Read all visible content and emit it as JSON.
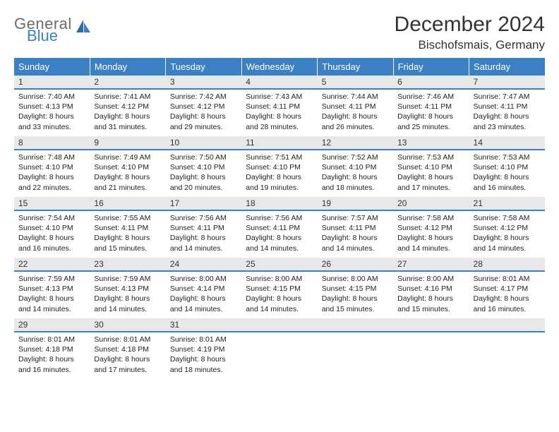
{
  "logo": {
    "word1": "General",
    "word2": "Blue",
    "color_gray": "#6b6b6b",
    "color_blue": "#3a80c2"
  },
  "title": "December 2024",
  "location": "Bischofsmais, Germany",
  "header_bg": "#3a80c2",
  "daynum_bg": "#e8e8e8",
  "daynum_border": "#3a80c2",
  "day_headers": [
    "Sunday",
    "Monday",
    "Tuesday",
    "Wednesday",
    "Thursday",
    "Friday",
    "Saturday"
  ],
  "weeks": [
    [
      {
        "n": "1",
        "sr": "Sunrise: 7:40 AM",
        "ss": "Sunset: 4:13 PM",
        "d1": "Daylight: 8 hours",
        "d2": "and 33 minutes."
      },
      {
        "n": "2",
        "sr": "Sunrise: 7:41 AM",
        "ss": "Sunset: 4:12 PM",
        "d1": "Daylight: 8 hours",
        "d2": "and 31 minutes."
      },
      {
        "n": "3",
        "sr": "Sunrise: 7:42 AM",
        "ss": "Sunset: 4:12 PM",
        "d1": "Daylight: 8 hours",
        "d2": "and 29 minutes."
      },
      {
        "n": "4",
        "sr": "Sunrise: 7:43 AM",
        "ss": "Sunset: 4:11 PM",
        "d1": "Daylight: 8 hours",
        "d2": "and 28 minutes."
      },
      {
        "n": "5",
        "sr": "Sunrise: 7:44 AM",
        "ss": "Sunset: 4:11 PM",
        "d1": "Daylight: 8 hours",
        "d2": "and 26 minutes."
      },
      {
        "n": "6",
        "sr": "Sunrise: 7:46 AM",
        "ss": "Sunset: 4:11 PM",
        "d1": "Daylight: 8 hours",
        "d2": "and 25 minutes."
      },
      {
        "n": "7",
        "sr": "Sunrise: 7:47 AM",
        "ss": "Sunset: 4:11 PM",
        "d1": "Daylight: 8 hours",
        "d2": "and 23 minutes."
      }
    ],
    [
      {
        "n": "8",
        "sr": "Sunrise: 7:48 AM",
        "ss": "Sunset: 4:10 PM",
        "d1": "Daylight: 8 hours",
        "d2": "and 22 minutes."
      },
      {
        "n": "9",
        "sr": "Sunrise: 7:49 AM",
        "ss": "Sunset: 4:10 PM",
        "d1": "Daylight: 8 hours",
        "d2": "and 21 minutes."
      },
      {
        "n": "10",
        "sr": "Sunrise: 7:50 AM",
        "ss": "Sunset: 4:10 PM",
        "d1": "Daylight: 8 hours",
        "d2": "and 20 minutes."
      },
      {
        "n": "11",
        "sr": "Sunrise: 7:51 AM",
        "ss": "Sunset: 4:10 PM",
        "d1": "Daylight: 8 hours",
        "d2": "and 19 minutes."
      },
      {
        "n": "12",
        "sr": "Sunrise: 7:52 AM",
        "ss": "Sunset: 4:10 PM",
        "d1": "Daylight: 8 hours",
        "d2": "and 18 minutes."
      },
      {
        "n": "13",
        "sr": "Sunrise: 7:53 AM",
        "ss": "Sunset: 4:10 PM",
        "d1": "Daylight: 8 hours",
        "d2": "and 17 minutes."
      },
      {
        "n": "14",
        "sr": "Sunrise: 7:53 AM",
        "ss": "Sunset: 4:10 PM",
        "d1": "Daylight: 8 hours",
        "d2": "and 16 minutes."
      }
    ],
    [
      {
        "n": "15",
        "sr": "Sunrise: 7:54 AM",
        "ss": "Sunset: 4:10 PM",
        "d1": "Daylight: 8 hours",
        "d2": "and 16 minutes."
      },
      {
        "n": "16",
        "sr": "Sunrise: 7:55 AM",
        "ss": "Sunset: 4:11 PM",
        "d1": "Daylight: 8 hours",
        "d2": "and 15 minutes."
      },
      {
        "n": "17",
        "sr": "Sunrise: 7:56 AM",
        "ss": "Sunset: 4:11 PM",
        "d1": "Daylight: 8 hours",
        "d2": "and 14 minutes."
      },
      {
        "n": "18",
        "sr": "Sunrise: 7:56 AM",
        "ss": "Sunset: 4:11 PM",
        "d1": "Daylight: 8 hours",
        "d2": "and 14 minutes."
      },
      {
        "n": "19",
        "sr": "Sunrise: 7:57 AM",
        "ss": "Sunset: 4:11 PM",
        "d1": "Daylight: 8 hours",
        "d2": "and 14 minutes."
      },
      {
        "n": "20",
        "sr": "Sunrise: 7:58 AM",
        "ss": "Sunset: 4:12 PM",
        "d1": "Daylight: 8 hours",
        "d2": "and 14 minutes."
      },
      {
        "n": "21",
        "sr": "Sunrise: 7:58 AM",
        "ss": "Sunset: 4:12 PM",
        "d1": "Daylight: 8 hours",
        "d2": "and 14 minutes."
      }
    ],
    [
      {
        "n": "22",
        "sr": "Sunrise: 7:59 AM",
        "ss": "Sunset: 4:13 PM",
        "d1": "Daylight: 8 hours",
        "d2": "and 14 minutes."
      },
      {
        "n": "23",
        "sr": "Sunrise: 7:59 AM",
        "ss": "Sunset: 4:13 PM",
        "d1": "Daylight: 8 hours",
        "d2": "and 14 minutes."
      },
      {
        "n": "24",
        "sr": "Sunrise: 8:00 AM",
        "ss": "Sunset: 4:14 PM",
        "d1": "Daylight: 8 hours",
        "d2": "and 14 minutes."
      },
      {
        "n": "25",
        "sr": "Sunrise: 8:00 AM",
        "ss": "Sunset: 4:15 PM",
        "d1": "Daylight: 8 hours",
        "d2": "and 14 minutes."
      },
      {
        "n": "26",
        "sr": "Sunrise: 8:00 AM",
        "ss": "Sunset: 4:15 PM",
        "d1": "Daylight: 8 hours",
        "d2": "and 15 minutes."
      },
      {
        "n": "27",
        "sr": "Sunrise: 8:00 AM",
        "ss": "Sunset: 4:16 PM",
        "d1": "Daylight: 8 hours",
        "d2": "and 15 minutes."
      },
      {
        "n": "28",
        "sr": "Sunrise: 8:01 AM",
        "ss": "Sunset: 4:17 PM",
        "d1": "Daylight: 8 hours",
        "d2": "and 16 minutes."
      }
    ],
    [
      {
        "n": "29",
        "sr": "Sunrise: 8:01 AM",
        "ss": "Sunset: 4:18 PM",
        "d1": "Daylight: 8 hours",
        "d2": "and 16 minutes."
      },
      {
        "n": "30",
        "sr": "Sunrise: 8:01 AM",
        "ss": "Sunset: 4:18 PM",
        "d1": "Daylight: 8 hours",
        "d2": "and 17 minutes."
      },
      {
        "n": "31",
        "sr": "Sunrise: 8:01 AM",
        "ss": "Sunset: 4:19 PM",
        "d1": "Daylight: 8 hours",
        "d2": "and 18 minutes."
      },
      {
        "empty": true
      },
      {
        "empty": true
      },
      {
        "empty": true
      },
      {
        "empty": true
      }
    ]
  ]
}
